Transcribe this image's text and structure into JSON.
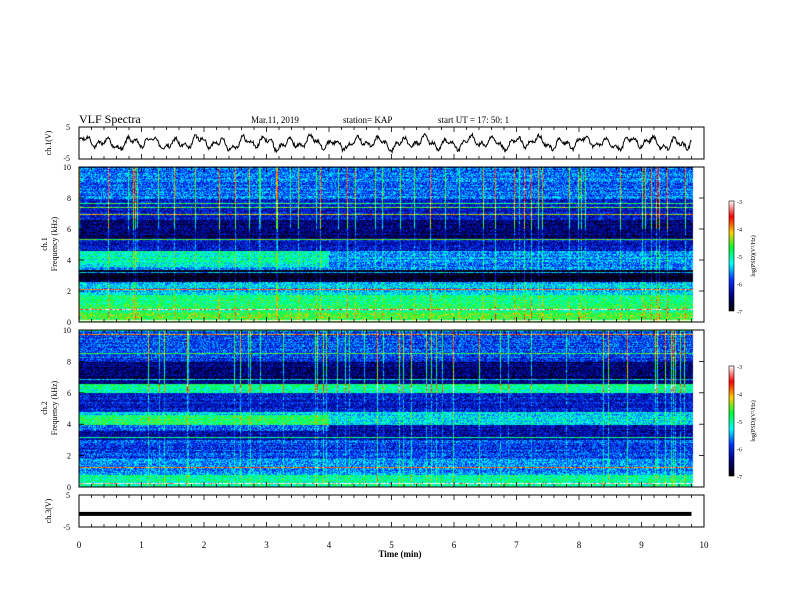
{
  "header": {
    "title": "VLF Spectra",
    "date": "Mar.11, 2019",
    "station": "station= KAP",
    "start": "start  UT =   17: 50: 1"
  },
  "colorbar": {
    "label": "log(PSD)(V²/Hz)",
    "ticks": [
      "-3",
      "-4",
      "-5",
      "-6",
      "-7"
    ],
    "stops": [
      "#ffffff",
      "#ff0000",
      "#ffcc00",
      "#00ff33",
      "#00ffff",
      "#0033ff",
      "#000080",
      "#000000"
    ]
  },
  "chart_data": [
    {
      "type": "line",
      "panel": "ch1-waveform",
      "ylabel": "ch.1(V)",
      "ylim": [
        -5,
        5
      ],
      "yticks": [
        "5",
        "-5"
      ],
      "xlim": [
        0,
        10
      ],
      "x_end": 9.8,
      "description_signal": "noisy oscillation roughly between -2.5 and 2.5 V"
    },
    {
      "type": "heatmap",
      "panel": "ch1-spectrogram",
      "ylabel_line1": "ch.1",
      "ylabel_line2": "Frequency (kHz)",
      "ylim": [
        0,
        10
      ],
      "yticks": [
        "0",
        "2",
        "4",
        "6",
        "8",
        "10"
      ],
      "xlim": [
        0,
        10
      ],
      "bands": [
        {
          "f0": 0.0,
          "f1": 0.6,
          "level": -4.6
        },
        {
          "f0": 0.6,
          "f1": 1.8,
          "level": -4.9
        },
        {
          "f0": 1.8,
          "f1": 2.6,
          "level": -5.4
        },
        {
          "f0": 2.6,
          "f1": 3.4,
          "level": -6.9
        },
        {
          "f0": 3.4,
          "f1": 4.6,
          "level": -5.6
        },
        {
          "f0": 4.6,
          "f1": 5.4,
          "level": -6.2
        },
        {
          "f0": 5.4,
          "f1": 6.6,
          "level": -6.5
        },
        {
          "f0": 6.6,
          "f1": 8.0,
          "level": -6.1
        },
        {
          "f0": 8.0,
          "f1": 10.0,
          "level": -5.7
        }
      ]
    },
    {
      "type": "heatmap",
      "panel": "ch2-spectrogram",
      "ylabel_line1": "ch.2",
      "ylabel_line2": "Frequency (kHz)",
      "ylim": [
        0,
        10
      ],
      "yticks": [
        "0",
        "2",
        "4",
        "6",
        "8",
        "10"
      ],
      "xlim": [
        0,
        10
      ],
      "bands": [
        {
          "f0": 0.0,
          "f1": 0.8,
          "level": -5.0
        },
        {
          "f0": 0.8,
          "f1": 1.8,
          "level": -5.6
        },
        {
          "f0": 1.8,
          "f1": 3.0,
          "level": -5.9
        },
        {
          "f0": 3.0,
          "f1": 4.0,
          "level": -6.3
        },
        {
          "f0": 4.0,
          "f1": 4.8,
          "level": -5.3
        },
        {
          "f0": 4.8,
          "f1": 6.0,
          "level": -6.1
        },
        {
          "f0": 6.0,
          "f1": 6.6,
          "level": -5.0
        },
        {
          "f0": 6.6,
          "f1": 8.0,
          "level": -6.5
        },
        {
          "f0": 8.0,
          "f1": 10.0,
          "level": -5.9
        }
      ]
    },
    {
      "type": "line",
      "panel": "ch3-waveform",
      "ylabel": "ch.3(V)",
      "ylim": [
        -5,
        5
      ],
      "yticks": [
        "5",
        "-5"
      ],
      "xlim": [
        0,
        10
      ],
      "constant_value": -0.9,
      "x_end": 9.8
    }
  ],
  "xaxis": {
    "label": "Time (min)",
    "ticks": [
      "0",
      "1",
      "2",
      "3",
      "4",
      "5",
      "6",
      "7",
      "8",
      "9",
      "10"
    ]
  }
}
